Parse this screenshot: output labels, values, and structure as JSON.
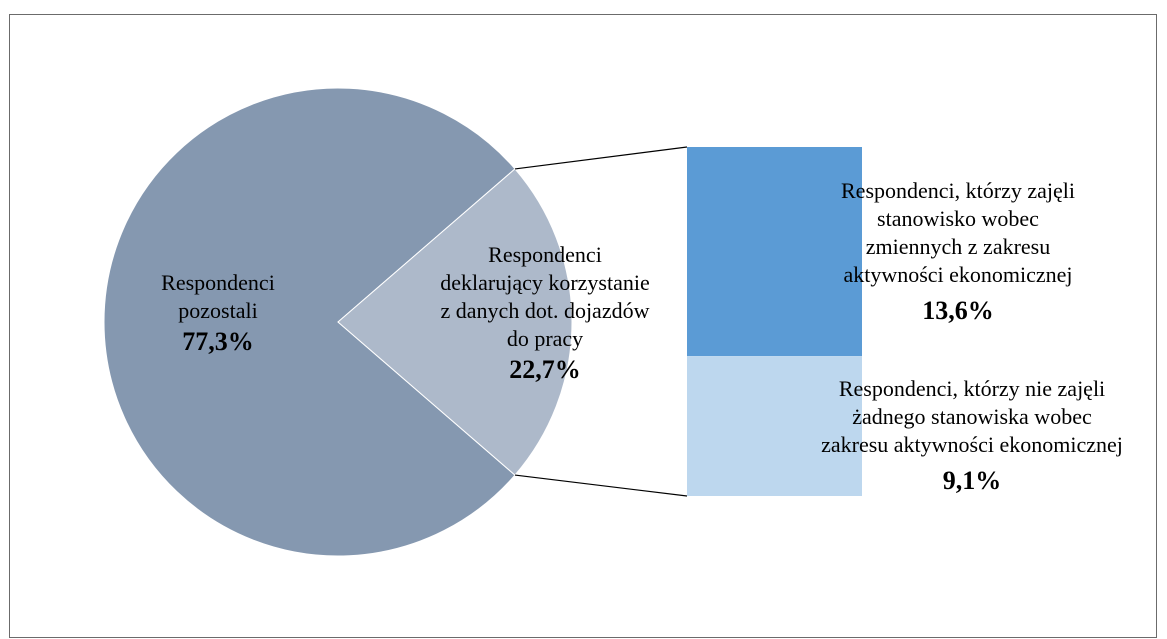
{
  "chart_data": {
    "type": "pie",
    "title": "",
    "pie": {
      "slices": [
        {
          "label_lines": [
            "Respondenci",
            "pozostali"
          ],
          "value": 77.3,
          "value_label": "77,3%",
          "color": "#8598b0"
        },
        {
          "label_lines": [
            "Respondenci",
            "deklarujący korzystanie",
            "z danych dot. dojazdów",
            "do pracy"
          ],
          "value": 22.7,
          "value_label": "22,7%",
          "color": "#adb9ca"
        }
      ]
    },
    "breakdown_bar": {
      "of_slice": 1,
      "segments": [
        {
          "label_lines": [
            "Respondenci, którzy zajęli",
            "stanowisko wobec",
            "zmiennych z zakresu",
            "aktywności ekonomicznej"
          ],
          "value": 13.6,
          "value_label": "13,6%",
          "color": "#5b9bd5"
        },
        {
          "label_lines": [
            "Respondenci, którzy nie zajęli",
            "żadnego stanowiska wobec",
            "zakresu aktywności ekonomicznej"
          ],
          "value": 9.1,
          "value_label": "9,1%",
          "color": "#bdd7ee"
        }
      ]
    },
    "legend": "none",
    "grid": false
  }
}
